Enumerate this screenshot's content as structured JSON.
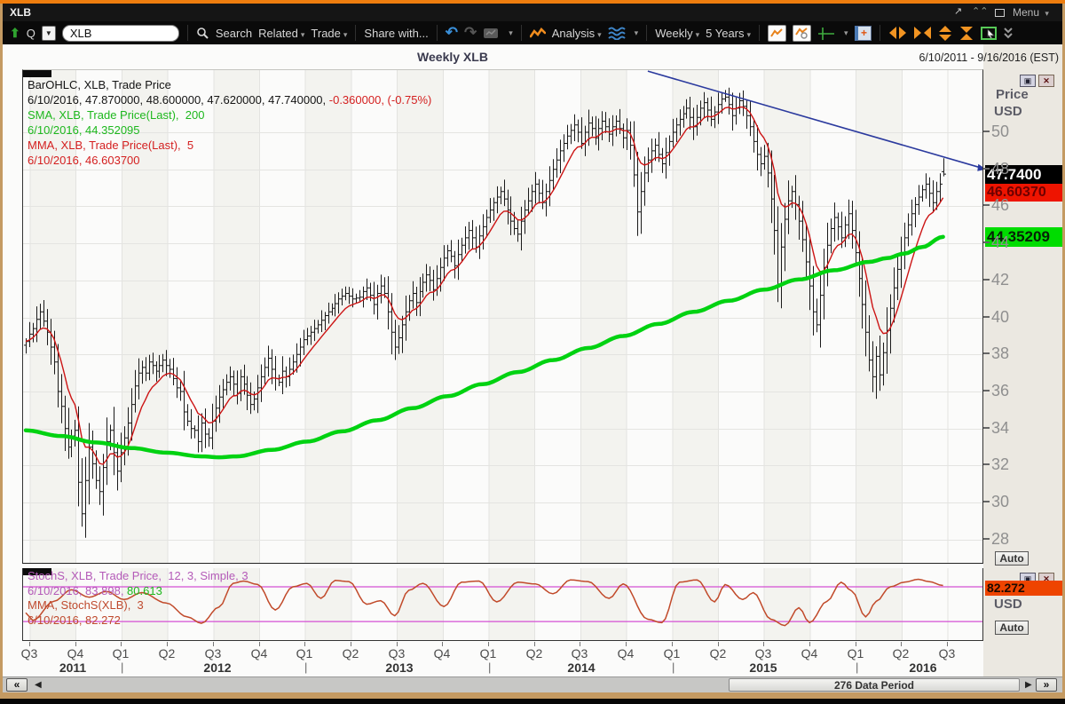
{
  "window": {
    "title": "XLB",
    "menu_label": "Menu"
  },
  "toolbar": {
    "quote_btn": "Q",
    "symbol_value": "XLB",
    "search_label": "Search",
    "related_label": "Related",
    "trade_label": "Trade",
    "share_label": "Share with...",
    "analysis_label": "Analysis",
    "periodicity_label": "Weekly",
    "range_label": "5 Years"
  },
  "chart_header": {
    "title": "Weekly XLB",
    "date_range": "6/10/2011 - 9/16/2016 (EST)"
  },
  "price_panel": {
    "legend": [
      [
        {
          "t": "BarOHLC, XLB, Trade Price",
          "c": "#141414"
        }
      ],
      [
        {
          "t": "6/10/2016, 47.870000, 48.600000, 47.620000, 47.740000, ",
          "c": "#141414"
        },
        {
          "t": "-0.360000, (-0.75%)",
          "c": "#d42020"
        }
      ],
      [
        {
          "t": "SMA, XLB, Trade Price(Last),  200",
          "c": "#1eb81e"
        }
      ],
      [
        {
          "t": "6/10/2016, 44.352095",
          "c": "#1eb81e"
        }
      ],
      [
        {
          "t": "MMA, XLB, Trade Price(Last),  5",
          "c": "#d42020"
        }
      ],
      [
        {
          "t": "6/10/2016, 46.603700",
          "c": "#d42020"
        }
      ]
    ],
    "axis_title": "Price",
    "axis_unit": "USD",
    "auto_label": "Auto",
    "callout_last": "47.7400",
    "callout_mma": "46.60370",
    "callout_sma": "44.35209"
  },
  "stoch_panel": {
    "legend": [
      [
        {
          "t": "StochS, XLB, Trade Price,  12, 3, Simple, 3",
          "c": "#b45ab8"
        }
      ],
      [
        {
          "t": "6/10/2016, 83.898, ",
          "c": "#b45ab8"
        },
        {
          "t": "80.613",
          "c": "#1eb81e"
        }
      ],
      [
        {
          "t": "MMA, StochS(XLB),  3",
          "c": "#bf4a2e"
        }
      ],
      [
        {
          "t": "6/10/2016, 82.272",
          "c": "#bf4a2e"
        }
      ]
    ],
    "callout_value": "82.272",
    "axis_unit": "USD",
    "auto_label": "Auto"
  },
  "x_axis": {
    "quarters": [
      "Q3",
      "Q4",
      "Q1",
      "Q2",
      "Q3",
      "Q4",
      "Q1",
      "Q2",
      "Q3",
      "Q4",
      "Q1",
      "Q2",
      "Q3",
      "Q4",
      "Q1",
      "Q2",
      "Q3",
      "Q4",
      "Q1",
      "Q2",
      "Q3"
    ],
    "years": [
      "2011",
      "2012",
      "2013",
      "2014",
      "2015",
      "2016"
    ]
  },
  "scrollbar": {
    "thumb_label": "276 Data Period"
  },
  "chart_data": {
    "type": "ohlc",
    "symbol": "XLB",
    "periodicity": "Weekly",
    "weeks_shown": 262,
    "data_period_label": "276 Data Period",
    "price_ticks": [
      50,
      48,
      46,
      44,
      42,
      40,
      38,
      36,
      34,
      32,
      30,
      28
    ],
    "last_bar": {
      "date": "6/10/2016",
      "open": 47.87,
      "high": 48.6,
      "low": 47.62,
      "close": 47.74,
      "change": -0.36,
      "change_pct": "-0.75%"
    },
    "sma200_last": 44.352095,
    "mma5_last": 46.6037,
    "colors": {
      "bars": "#1a1a1a",
      "sma": "#00d211",
      "mma": "#cc1414",
      "trendline": "#2b3a9e",
      "stoch_mma": "#c14a2a",
      "stoch_levels": "#d44fd4"
    },
    "close_anchors": [
      0,
      38.7,
      1,
      39.1,
      2,
      39.4,
      3,
      39.9,
      4,
      40.3,
      5,
      39.8,
      6,
      39.2,
      7,
      38.4,
      8,
      37.6,
      9,
      36.0,
      10,
      35.2,
      11,
      34.0,
      12,
      33.0,
      13,
      33.6,
      14,
      33.9,
      15,
      31.1,
      16,
      29.4,
      17,
      31.2,
      18,
      33.0,
      19,
      32.1,
      20,
      31.2,
      21,
      30.6,
      22,
      31.9,
      23,
      33.3,
      24,
      33.9,
      25,
      32.7,
      26,
      31.7,
      27,
      32.7,
      28,
      33.5,
      29,
      34.3,
      30,
      35.3,
      31,
      36.3,
      32,
      37.0,
      33,
      37.3,
      34,
      37.0,
      35,
      37.6,
      36,
      37.4,
      37,
      37.1,
      38,
      37.4,
      39,
      37.7,
      40,
      37.4,
      41,
      37.2,
      42,
      36.7,
      43,
      36.2,
      44,
      36.0,
      45,
      34.9,
      46,
      34.4,
      47,
      34.0,
      48,
      33.9,
      49,
      33.3,
      50,
      34.3,
      51,
      33.7,
      52,
      33.5,
      53,
      34.4,
      54,
      35.1,
      55,
      35.7,
      56,
      36.1,
      57,
      36.5,
      58,
      36.8,
      59,
      36.4,
      60,
      35.9,
      61,
      36.8,
      62,
      36.4,
      63,
      35.8,
      64,
      35.3,
      65,
      35.6,
      66,
      36.2,
      67,
      36.8,
      68,
      37.3,
      69,
      37.8,
      70,
      37.2,
      71,
      36.7,
      72,
      36.5,
      73,
      37.1,
      74,
      36.8,
      75,
      37.2,
      76,
      37.6,
      77,
      38.0,
      78,
      38.4,
      79,
      38.8,
      80,
      39.0,
      81,
      39.2,
      83,
      39.6,
      85,
      40.1,
      87,
      40.5,
      89,
      41.0,
      91,
      41.3,
      93,
      41.0,
      95,
      41.1,
      96,
      41.4,
      97,
      41.6,
      98,
      41.2,
      99,
      40.7,
      100,
      41.3,
      101,
      41.7,
      102,
      41.3,
      103,
      40.3,
      104,
      39.2,
      105,
      38.4,
      106,
      38.9,
      107,
      39.6,
      108,
      40.3,
      109,
      40.9,
      110,
      41.3,
      111,
      40.8,
      112,
      41.4,
      113,
      41.9,
      114,
      42.3,
      115,
      42.0,
      116,
      41.5,
      117,
      42.1,
      118,
      42.7,
      119,
      43.2,
      120,
      43.6,
      121,
      43.3,
      122,
      42.8,
      123,
      43.4,
      124,
      43.9,
      125,
      44.3,
      126,
      44.7,
      127,
      44.3,
      128,
      43.8,
      129,
      44.4,
      130,
      44.9,
      131,
      45.4,
      132,
      45.8,
      133,
      46.2,
      134,
      46.5,
      135,
      46.8,
      136,
      46.4,
      137,
      45.8,
      138,
      45.2,
      139,
      44.8,
      140,
      44.5,
      141,
      45.2,
      142,
      45.8,
      143,
      46.3,
      144,
      46.8,
      145,
      47.2,
      146,
      46.7,
      147,
      46.2,
      148,
      46.8,
      149,
      47.4,
      150,
      48.0,
      151,
      48.5,
      152,
      49.0,
      153,
      49.4,
      154,
      49.8,
      155,
      50.1,
      156,
      50.4,
      157,
      50.0,
      158,
      49.4,
      159,
      50.0,
      160,
      50.5,
      161,
      50.2,
      162,
      49.7,
      163,
      50.2,
      164,
      50.6,
      165,
      50.3,
      166,
      49.9,
      167,
      50.3,
      168,
      50.6,
      169,
      50.2,
      170,
      49.7,
      171,
      50.1,
      172,
      49.3,
      173,
      47.7,
      174,
      45.7,
      175,
      46.8,
      176,
      47.8,
      177,
      48.5,
      178,
      49.0,
      179,
      49.3,
      180,
      48.8,
      181,
      48.3,
      182,
      48.9,
      183,
      49.5,
      184,
      50.0,
      185,
      50.4,
      186,
      50.7,
      187,
      51.0,
      188,
      51.3,
      189,
      50.8,
      190,
      50.3,
      191,
      50.8,
      192,
      51.3,
      193,
      51.6,
      194,
      51.2,
      195,
      50.7,
      196,
      51.1,
      197,
      51.5,
      198,
      51.8,
      199,
      51.9,
      200,
      51.5,
      201,
      50.9,
      202,
      51.3,
      203,
      51.7,
      204,
      51.4,
      205,
      50.9,
      206,
      50.3,
      207,
      49.5,
      208,
      48.8,
      209,
      48.3,
      210,
      48.7,
      211,
      47.8,
      212,
      46.4,
      213,
      44.7,
      214,
      41.8,
      215,
      43.8,
      216,
      45.3,
      217,
      46.3,
      218,
      46.8,
      219,
      46.1,
      220,
      45.2,
      221,
      44.2,
      222,
      43.0,
      223,
      41.7,
      224,
      40.3,
      225,
      39.6,
      226,
      41.2,
      227,
      42.7,
      228,
      43.9,
      229,
      44.8,
      230,
      45.4,
      231,
      44.9,
      232,
      44.3,
      233,
      45.0,
      234,
      45.6,
      235,
      44.7,
      236,
      43.5,
      237,
      42.1,
      238,
      40.7,
      239,
      39.2,
      240,
      37.7,
      241,
      36.8,
      242,
      37.9,
      243,
      36.9,
      244,
      38.1,
      245,
      39.3,
      246,
      40.5,
      247,
      41.6,
      248,
      42.6,
      249,
      43.5,
      250,
      44.3,
      251,
      45.0,
      252,
      45.6,
      253,
      46.1,
      254,
      46.5,
      255,
      46.9,
      256,
      47.2,
      257,
      46.7,
      258,
      46.2,
      259,
      46.8,
      260,
      47.2,
      261,
      47.74
    ],
    "sma200_anchors": [
      0,
      33.9,
      10,
      33.6,
      20,
      33.25,
      30,
      32.95,
      40,
      32.7,
      50,
      32.5,
      55,
      32.45,
      60,
      32.5,
      70,
      32.85,
      80,
      33.3,
      90,
      33.85,
      100,
      34.45,
      110,
      35.1,
      120,
      35.75,
      130,
      36.4,
      140,
      37.05,
      150,
      37.7,
      160,
      38.35,
      170,
      39.0,
      180,
      39.65,
      190,
      40.3,
      200,
      40.9,
      210,
      41.5,
      220,
      42.05,
      230,
      42.55,
      240,
      43.0,
      245,
      43.2,
      250,
      43.45,
      255,
      43.8,
      261,
      44.352
    ],
    "trendline": {
      "x1_week": 177,
      "price1": 53.3,
      "x2_week": 273.3,
      "price2": 48.0
    },
    "stochastics": {
      "name": "StochS 12,3 Simple,3",
      "k_last": 83.898,
      "d_last": 80.613,
      "mma_last": 82.272,
      "levels": [
        80,
        20
      ],
      "mma_anchors": [
        0,
        35,
        2,
        22,
        8,
        55,
        13,
        75,
        18,
        62,
        23,
        72,
        28,
        58,
        33,
        70,
        40,
        52,
        46,
        28,
        50,
        17,
        55,
        45,
        59,
        86,
        62,
        90,
        66,
        84,
        71,
        40,
        76,
        80,
        80,
        86,
        84,
        60,
        88,
        91,
        92,
        89,
        97,
        50,
        101,
        56,
        105,
        30,
        109,
        74,
        113,
        86,
        119,
        46,
        124,
        88,
        129,
        90,
        134,
        54,
        140,
        88,
        145,
        85,
        150,
        68,
        155,
        92,
        160,
        89,
        166,
        60,
        170,
        85,
        177,
        24,
        181,
        18,
        186,
        88,
        191,
        92,
        196,
        54,
        199,
        84,
        204,
        58,
        207,
        70,
        212,
        24,
        216,
        13,
        220,
        44,
        223,
        18,
        228,
        55,
        232,
        88,
        235,
        73,
        239,
        28,
        242,
        55,
        246,
        80,
        250,
        88,
        254,
        93,
        257,
        89,
        261,
        82.3
      ]
    }
  }
}
